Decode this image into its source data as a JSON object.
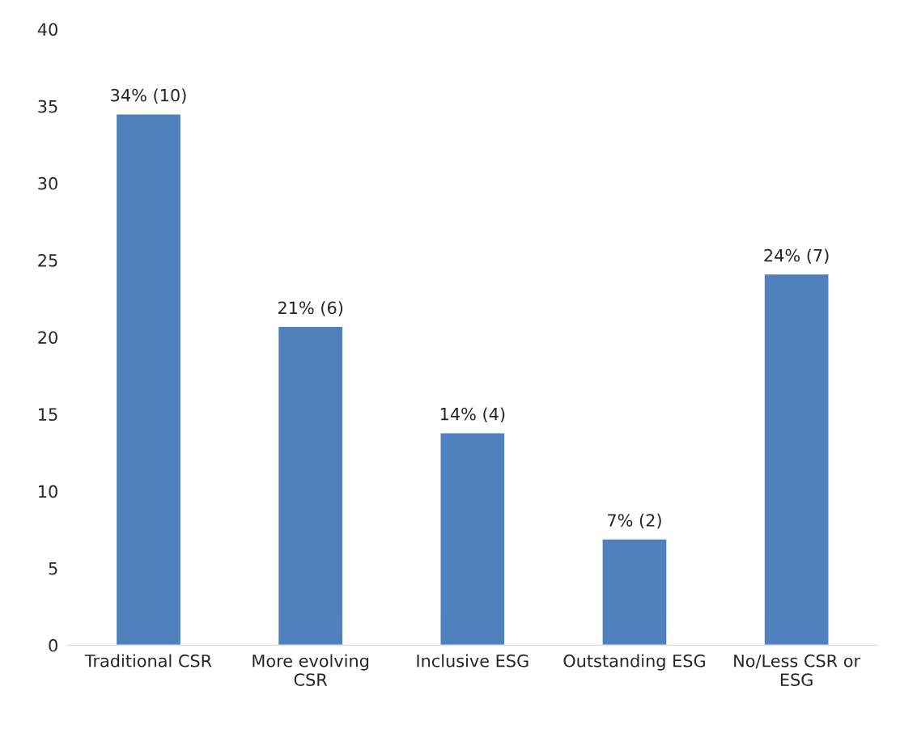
{
  "chart_data": {
    "type": "bar",
    "categories": [
      "Traditional CSR",
      "More evolving\nCSR",
      "Inclusive ESG",
      "Outstanding ESG",
      "No/Less CSR or\nESG"
    ],
    "values": [
      34.5,
      20.7,
      13.8,
      6.9,
      24.1
    ],
    "value_labels": [
      "34% (10)",
      "21% (6)",
      "14% (4)",
      "7% (2)",
      "24% (7)"
    ],
    "color": "#4f81bd",
    "ylim": [
      0,
      40
    ],
    "yticks": [
      0,
      5,
      10,
      15,
      20,
      25,
      30,
      35,
      40
    ],
    "grid": false,
    "legend": false
  }
}
